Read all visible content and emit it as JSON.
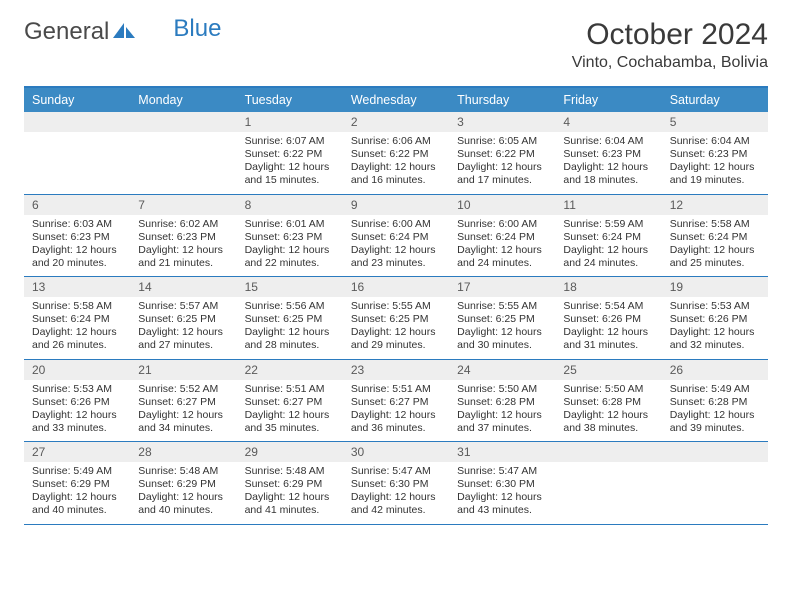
{
  "logo": {
    "textGray": "General",
    "textBlue": "Blue"
  },
  "title": "October 2024",
  "location": "Vinto, Cochabamba, Bolivia",
  "colors": {
    "headerBar": "#3b8ac4",
    "border": "#2b7bbf",
    "dayNumBg": "#eeeeee",
    "textDark": "#3a3a3a",
    "bodyText": "#333333"
  },
  "daysOfWeek": [
    "Sunday",
    "Monday",
    "Tuesday",
    "Wednesday",
    "Thursday",
    "Friday",
    "Saturday"
  ],
  "weeks": [
    [
      {
        "num": "",
        "lines": [
          "",
          "",
          "",
          ""
        ]
      },
      {
        "num": "",
        "lines": [
          "",
          "",
          "",
          ""
        ]
      },
      {
        "num": "1",
        "lines": [
          "Sunrise: 6:07 AM",
          "Sunset: 6:22 PM",
          "Daylight: 12 hours",
          "and 15 minutes."
        ]
      },
      {
        "num": "2",
        "lines": [
          "Sunrise: 6:06 AM",
          "Sunset: 6:22 PM",
          "Daylight: 12 hours",
          "and 16 minutes."
        ]
      },
      {
        "num": "3",
        "lines": [
          "Sunrise: 6:05 AM",
          "Sunset: 6:22 PM",
          "Daylight: 12 hours",
          "and 17 minutes."
        ]
      },
      {
        "num": "4",
        "lines": [
          "Sunrise: 6:04 AM",
          "Sunset: 6:23 PM",
          "Daylight: 12 hours",
          "and 18 minutes."
        ]
      },
      {
        "num": "5",
        "lines": [
          "Sunrise: 6:04 AM",
          "Sunset: 6:23 PM",
          "Daylight: 12 hours",
          "and 19 minutes."
        ]
      }
    ],
    [
      {
        "num": "6",
        "lines": [
          "Sunrise: 6:03 AM",
          "Sunset: 6:23 PM",
          "Daylight: 12 hours",
          "and 20 minutes."
        ]
      },
      {
        "num": "7",
        "lines": [
          "Sunrise: 6:02 AM",
          "Sunset: 6:23 PM",
          "Daylight: 12 hours",
          "and 21 minutes."
        ]
      },
      {
        "num": "8",
        "lines": [
          "Sunrise: 6:01 AM",
          "Sunset: 6:23 PM",
          "Daylight: 12 hours",
          "and 22 minutes."
        ]
      },
      {
        "num": "9",
        "lines": [
          "Sunrise: 6:00 AM",
          "Sunset: 6:24 PM",
          "Daylight: 12 hours",
          "and 23 minutes."
        ]
      },
      {
        "num": "10",
        "lines": [
          "Sunrise: 6:00 AM",
          "Sunset: 6:24 PM",
          "Daylight: 12 hours",
          "and 24 minutes."
        ]
      },
      {
        "num": "11",
        "lines": [
          "Sunrise: 5:59 AM",
          "Sunset: 6:24 PM",
          "Daylight: 12 hours",
          "and 24 minutes."
        ]
      },
      {
        "num": "12",
        "lines": [
          "Sunrise: 5:58 AM",
          "Sunset: 6:24 PM",
          "Daylight: 12 hours",
          "and 25 minutes."
        ]
      }
    ],
    [
      {
        "num": "13",
        "lines": [
          "Sunrise: 5:58 AM",
          "Sunset: 6:24 PM",
          "Daylight: 12 hours",
          "and 26 minutes."
        ]
      },
      {
        "num": "14",
        "lines": [
          "Sunrise: 5:57 AM",
          "Sunset: 6:25 PM",
          "Daylight: 12 hours",
          "and 27 minutes."
        ]
      },
      {
        "num": "15",
        "lines": [
          "Sunrise: 5:56 AM",
          "Sunset: 6:25 PM",
          "Daylight: 12 hours",
          "and 28 minutes."
        ]
      },
      {
        "num": "16",
        "lines": [
          "Sunrise: 5:55 AM",
          "Sunset: 6:25 PM",
          "Daylight: 12 hours",
          "and 29 minutes."
        ]
      },
      {
        "num": "17",
        "lines": [
          "Sunrise: 5:55 AM",
          "Sunset: 6:25 PM",
          "Daylight: 12 hours",
          "and 30 minutes."
        ]
      },
      {
        "num": "18",
        "lines": [
          "Sunrise: 5:54 AM",
          "Sunset: 6:26 PM",
          "Daylight: 12 hours",
          "and 31 minutes."
        ]
      },
      {
        "num": "19",
        "lines": [
          "Sunrise: 5:53 AM",
          "Sunset: 6:26 PM",
          "Daylight: 12 hours",
          "and 32 minutes."
        ]
      }
    ],
    [
      {
        "num": "20",
        "lines": [
          "Sunrise: 5:53 AM",
          "Sunset: 6:26 PM",
          "Daylight: 12 hours",
          "and 33 minutes."
        ]
      },
      {
        "num": "21",
        "lines": [
          "Sunrise: 5:52 AM",
          "Sunset: 6:27 PM",
          "Daylight: 12 hours",
          "and 34 minutes."
        ]
      },
      {
        "num": "22",
        "lines": [
          "Sunrise: 5:51 AM",
          "Sunset: 6:27 PM",
          "Daylight: 12 hours",
          "and 35 minutes."
        ]
      },
      {
        "num": "23",
        "lines": [
          "Sunrise: 5:51 AM",
          "Sunset: 6:27 PM",
          "Daylight: 12 hours",
          "and 36 minutes."
        ]
      },
      {
        "num": "24",
        "lines": [
          "Sunrise: 5:50 AM",
          "Sunset: 6:28 PM",
          "Daylight: 12 hours",
          "and 37 minutes."
        ]
      },
      {
        "num": "25",
        "lines": [
          "Sunrise: 5:50 AM",
          "Sunset: 6:28 PM",
          "Daylight: 12 hours",
          "and 38 minutes."
        ]
      },
      {
        "num": "26",
        "lines": [
          "Sunrise: 5:49 AM",
          "Sunset: 6:28 PM",
          "Daylight: 12 hours",
          "and 39 minutes."
        ]
      }
    ],
    [
      {
        "num": "27",
        "lines": [
          "Sunrise: 5:49 AM",
          "Sunset: 6:29 PM",
          "Daylight: 12 hours",
          "and 40 minutes."
        ]
      },
      {
        "num": "28",
        "lines": [
          "Sunrise: 5:48 AM",
          "Sunset: 6:29 PM",
          "Daylight: 12 hours",
          "and 40 minutes."
        ]
      },
      {
        "num": "29",
        "lines": [
          "Sunrise: 5:48 AM",
          "Sunset: 6:29 PM",
          "Daylight: 12 hours",
          "and 41 minutes."
        ]
      },
      {
        "num": "30",
        "lines": [
          "Sunrise: 5:47 AM",
          "Sunset: 6:30 PM",
          "Daylight: 12 hours",
          "and 42 minutes."
        ]
      },
      {
        "num": "31",
        "lines": [
          "Sunrise: 5:47 AM",
          "Sunset: 6:30 PM",
          "Daylight: 12 hours",
          "and 43 minutes."
        ]
      },
      {
        "num": "",
        "lines": [
          "",
          "",
          "",
          ""
        ]
      },
      {
        "num": "",
        "lines": [
          "",
          "",
          "",
          ""
        ]
      }
    ]
  ]
}
